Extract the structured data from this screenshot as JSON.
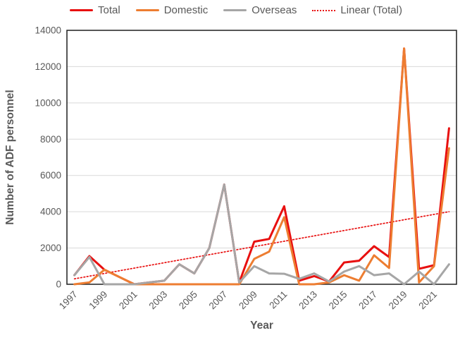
{
  "chart_data": {
    "type": "line",
    "title": "",
    "xlabel": "Year",
    "ylabel": "Number of ADF personnel",
    "ylim": [
      0,
      14000
    ],
    "y_ticks": [
      0,
      2000,
      4000,
      6000,
      8000,
      10000,
      12000,
      14000
    ],
    "x_tick_labels": [
      "1997",
      "1999",
      "2001",
      "2003",
      "2005",
      "2007",
      "2009",
      "2011",
      "2013",
      "2015",
      "2017",
      "2019",
      "2021"
    ],
    "years": [
      1997,
      1998,
      1999,
      2000,
      2001,
      2002,
      2003,
      2004,
      2005,
      2006,
      2007,
      2008,
      2009,
      2010,
      2011,
      2012,
      2013,
      2014,
      2015,
      2016,
      2017,
      2018,
      2019,
      2020,
      2021,
      2022
    ],
    "series": [
      {
        "name": "Total",
        "color": "#e81010",
        "values": [
          500,
          1550,
          800,
          400,
          0,
          100,
          200,
          1100,
          600,
          2000,
          5500,
          100,
          2350,
          2500,
          4300,
          200,
          450,
          150,
          1200,
          1300,
          2100,
          1500,
          13000,
          850,
          1050,
          8600
        ]
      },
      {
        "name": "Domestic",
        "color": "#ed7d31",
        "values": [
          0,
          100,
          800,
          400,
          0,
          0,
          0,
          0,
          0,
          0,
          0,
          0,
          1400,
          1800,
          3700,
          0,
          0,
          100,
          500,
          200,
          1600,
          900,
          13000,
          100,
          1000,
          7500
        ]
      },
      {
        "name": "Overseas",
        "color": "#a6a6a6",
        "values": [
          500,
          1500,
          0,
          0,
          0,
          100,
          200,
          1100,
          600,
          2000,
          5500,
          100,
          1000,
          600,
          580,
          300,
          600,
          150,
          700,
          1000,
          500,
          600,
          0,
          700,
          0,
          1100
        ]
      }
    ],
    "trendline": {
      "name": "Linear (Total)",
      "color": "#e81010",
      "style": "dotted",
      "start_value": 300,
      "end_value": 4000
    },
    "legend_position": "top",
    "grid": true,
    "grid_color": "#d9d9d9",
    "axis_color": "#1f1f1f",
    "tick_label_color": "#595959"
  }
}
